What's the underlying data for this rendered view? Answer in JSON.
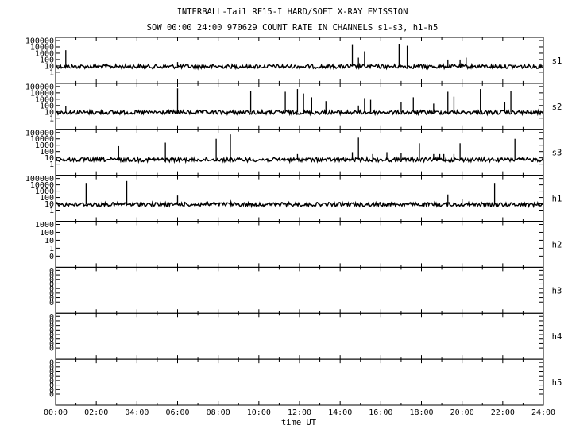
{
  "chart_data": {
    "type": "line",
    "title": "INTERBALL-Tail RF15-I HARD/SOFT X-RAY EMISSION",
    "subtitle": "SOW 00:00 24:00 970629  COUNT RATE IN CHANNELS s1-s3, h1-h5",
    "xlabel": "time UT",
    "x_ticks": [
      "00:00",
      "02:00",
      "04:00",
      "06:00",
      "08:00",
      "10:00",
      "12:00",
      "14:00",
      "16:00",
      "18:00",
      "20:00",
      "22:00",
      "24:00"
    ],
    "xlim_hours": [
      0,
      24
    ],
    "y_scale": "log",
    "grid": false,
    "panels": [
      {
        "name": "s1",
        "yticks": [
          "100000",
          "10000",
          "1000",
          "100",
          "10",
          "1"
        ],
        "ylim": [
          1,
          100000
        ],
        "baseline": 8,
        "spikes": [
          {
            "t": 0.5,
            "v": 3000
          },
          {
            "t": 6.0,
            "v": 40
          },
          {
            "t": 14.6,
            "v": 20000
          },
          {
            "t": 14.9,
            "v": 200
          },
          {
            "t": 15.2,
            "v": 2000
          },
          {
            "t": 16.9,
            "v": 30000
          },
          {
            "t": 17.3,
            "v": 15000
          },
          {
            "t": 19.3,
            "v": 100
          },
          {
            "t": 19.9,
            "v": 100
          },
          {
            "t": 20.2,
            "v": 200
          }
        ]
      },
      {
        "name": "s2",
        "yticks": [
          "100000",
          "10000",
          "1000",
          "100",
          "10",
          "1"
        ],
        "ylim": [
          1,
          100000
        ],
        "baseline": 8,
        "spikes": [
          {
            "t": 0.5,
            "v": 80
          },
          {
            "t": 6.0,
            "v": 50000
          },
          {
            "t": 9.6,
            "v": 20000
          },
          {
            "t": 11.3,
            "v": 15000
          },
          {
            "t": 11.9,
            "v": 40000
          },
          {
            "t": 12.2,
            "v": 8000
          },
          {
            "t": 12.6,
            "v": 2000
          },
          {
            "t": 13.3,
            "v": 500
          },
          {
            "t": 14.9,
            "v": 100
          },
          {
            "t": 15.2,
            "v": 1500
          },
          {
            "t": 15.5,
            "v": 800
          },
          {
            "t": 17.0,
            "v": 300
          },
          {
            "t": 17.6,
            "v": 2000
          },
          {
            "t": 18.6,
            "v": 200
          },
          {
            "t": 19.3,
            "v": 15000
          },
          {
            "t": 19.6,
            "v": 2500
          },
          {
            "t": 20.9,
            "v": 40000
          },
          {
            "t": 22.1,
            "v": 300
          },
          {
            "t": 22.4,
            "v": 20000
          }
        ]
      },
      {
        "name": "s3",
        "yticks": [
          "100000",
          "10000",
          "1000",
          "100",
          "10",
          "1"
        ],
        "ylim": [
          1,
          100000
        ],
        "baseline": 5,
        "spikes": [
          {
            "t": 3.1,
            "v": 700
          },
          {
            "t": 5.4,
            "v": 2500
          },
          {
            "t": 7.9,
            "v": 10000
          },
          {
            "t": 8.6,
            "v": 50000
          },
          {
            "t": 11.9,
            "v": 40
          },
          {
            "t": 14.6,
            "v": 80
          },
          {
            "t": 14.9,
            "v": 15000
          },
          {
            "t": 15.6,
            "v": 40
          },
          {
            "t": 16.3,
            "v": 80
          },
          {
            "t": 17.0,
            "v": 60
          },
          {
            "t": 17.9,
            "v": 2000
          },
          {
            "t": 18.6,
            "v": 40
          },
          {
            "t": 18.9,
            "v": 40
          },
          {
            "t": 19.1,
            "v": 40
          },
          {
            "t": 19.6,
            "v": 40
          },
          {
            "t": 19.9,
            "v": 2000
          },
          {
            "t": 22.6,
            "v": 10000
          }
        ]
      },
      {
        "name": "h1",
        "yticks": [
          "100000",
          "10000",
          "1000",
          "100",
          "10",
          "1"
        ],
        "ylim": [
          1,
          100000
        ],
        "baseline": 8,
        "spikes": [
          {
            "t": 1.5,
            "v": 20000
          },
          {
            "t": 3.5,
            "v": 40000
          },
          {
            "t": 6.0,
            "v": 200
          },
          {
            "t": 8.6,
            "v": 40
          },
          {
            "t": 19.3,
            "v": 300
          },
          {
            "t": 20.0,
            "v": 60
          },
          {
            "t": 21.6,
            "v": 20000
          }
        ]
      },
      {
        "name": "h2",
        "yticks": [
          "1000",
          "100",
          "10",
          "1",
          "0"
        ],
        "ylim": [
          0.1,
          1000
        ],
        "baseline": null,
        "spikes": []
      },
      {
        "name": "h3",
        "yticks": [
          "0",
          "0",
          "0",
          "0",
          "0",
          "0",
          "0",
          "0"
        ],
        "baseline": null,
        "spikes": []
      },
      {
        "name": "h4",
        "yticks": [
          "0",
          "0",
          "0",
          "0",
          "0",
          "0",
          "0",
          "0"
        ],
        "baseline": null,
        "spikes": []
      },
      {
        "name": "h5",
        "yticks": [
          "0",
          "0",
          "0",
          "0",
          "0",
          "0",
          "0",
          "0"
        ],
        "baseline": null,
        "spikes": []
      }
    ]
  }
}
